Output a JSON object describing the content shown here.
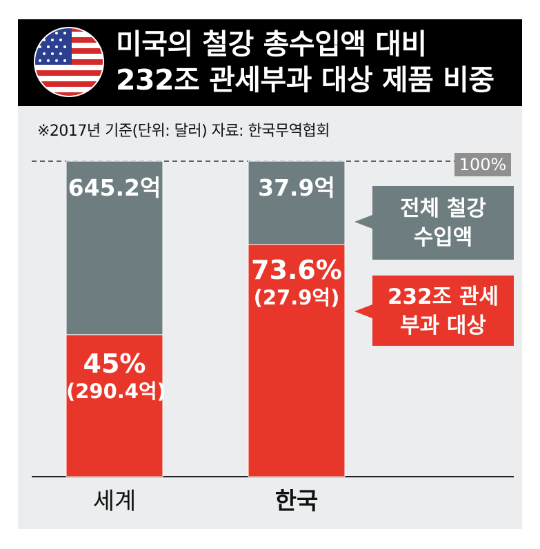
{
  "header": {
    "title_line1": "미국의 철강 총수입액 대비",
    "title_line2": "232조 관세부과 대상 제품 비중",
    "flag_icon": "us-flag-icon"
  },
  "source_note": "※2017년 기준(단위: 달러) 자료: 한국무역협회",
  "colors": {
    "total": "#6e7d7f",
    "target": "#e8372a",
    "header_bg": "#000000",
    "panel_bg": "#ebedee"
  },
  "chart_data": {
    "type": "bar",
    "stacked": true,
    "categories": [
      "세계",
      "한국"
    ],
    "ylim": [
      0,
      100
    ],
    "reference_label": "100%",
    "series": [
      {
        "name": "232조 관세 부과 대상",
        "values": [
          45,
          73.6
        ],
        "labels": [
          [
            "45%",
            "(290.4억)"
          ],
          [
            "73.6%",
            "(27.9억)"
          ]
        ]
      },
      {
        "name": "전체 철강 수입액",
        "values": [
          55,
          26.4
        ],
        "labels": [
          "645.2억",
          "37.9억"
        ]
      }
    ],
    "legend": {
      "total": [
        "전체 철강",
        "수입액"
      ],
      "target": [
        "232조 관세",
        "부과 대상"
      ]
    }
  }
}
